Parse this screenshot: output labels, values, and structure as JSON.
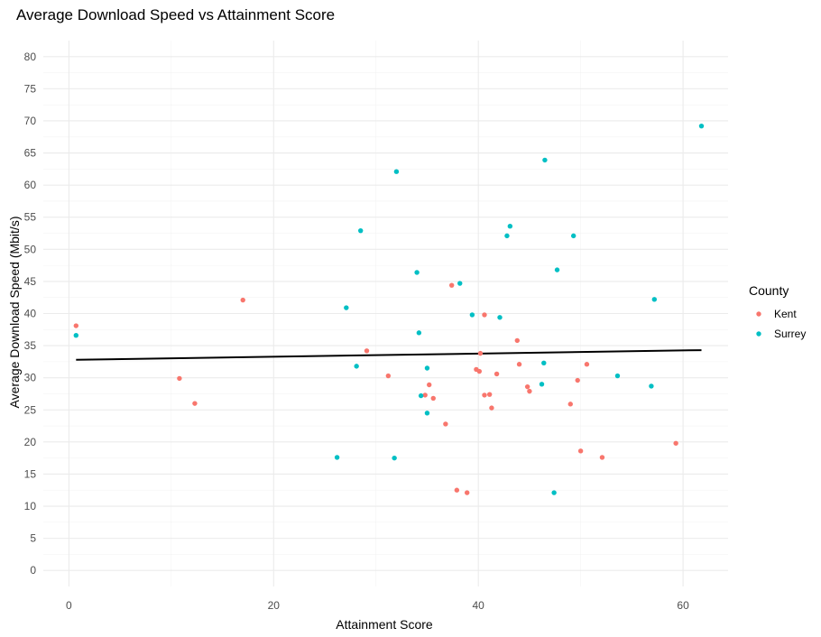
{
  "chart_data": {
    "type": "scatter",
    "title": "Average Download Speed vs Attainment Score",
    "xlabel": "Attainment Score",
    "ylabel": "Average Download Speed (Mbit/s)",
    "xlim": [
      -2.5,
      64.4
    ],
    "ylim": [
      -2.5,
      82.5
    ],
    "x_ticks": [
      0,
      20,
      40,
      60
    ],
    "y_ticks": [
      0,
      5,
      10,
      15,
      20,
      25,
      30,
      35,
      40,
      45,
      50,
      55,
      60,
      65,
      70,
      75,
      80
    ],
    "grid": true,
    "legend": {
      "title": "County",
      "position": "right"
    },
    "series": [
      {
        "name": "Kent",
        "color": "#F8766D",
        "points": [
          [
            0.7,
            38.1
          ],
          [
            10.8,
            29.9
          ],
          [
            12.3,
            26.0
          ],
          [
            17.0,
            42.1
          ],
          [
            29.1,
            34.2
          ],
          [
            31.2,
            30.3
          ],
          [
            34.8,
            27.3
          ],
          [
            35.2,
            28.9
          ],
          [
            35.6,
            26.8
          ],
          [
            36.8,
            22.8
          ],
          [
            37.4,
            44.4
          ],
          [
            37.9,
            12.5
          ],
          [
            38.9,
            12.1
          ],
          [
            39.8,
            31.3
          ],
          [
            40.1,
            31.0
          ],
          [
            40.2,
            33.8
          ],
          [
            40.6,
            39.8
          ],
          [
            40.6,
            27.3
          ],
          [
            41.1,
            27.4
          ],
          [
            41.3,
            25.3
          ],
          [
            41.8,
            30.6
          ],
          [
            43.8,
            35.8
          ],
          [
            44.0,
            32.1
          ],
          [
            44.8,
            28.6
          ],
          [
            45.0,
            27.9
          ],
          [
            49.0,
            25.9
          ],
          [
            49.7,
            29.6
          ],
          [
            50.0,
            18.6
          ],
          [
            50.6,
            32.1
          ],
          [
            52.1,
            17.6
          ],
          [
            59.3,
            19.8
          ]
        ]
      },
      {
        "name": "Surrey",
        "color": "#00BFC4",
        "points": [
          [
            0.7,
            36.6
          ],
          [
            26.2,
            17.6
          ],
          [
            27.1,
            40.9
          ],
          [
            28.1,
            31.8
          ],
          [
            28.5,
            52.9
          ],
          [
            31.8,
            17.5
          ],
          [
            32.0,
            62.1
          ],
          [
            34.0,
            46.4
          ],
          [
            34.2,
            37.0
          ],
          [
            34.4,
            27.2
          ],
          [
            35.0,
            31.5
          ],
          [
            35.0,
            24.5
          ],
          [
            38.2,
            44.7
          ],
          [
            39.4,
            39.8
          ],
          [
            42.1,
            39.4
          ],
          [
            42.8,
            52.1
          ],
          [
            43.1,
            53.6
          ],
          [
            46.2,
            29.0
          ],
          [
            46.4,
            32.3
          ],
          [
            46.5,
            63.9
          ],
          [
            47.4,
            12.1
          ],
          [
            47.7,
            46.8
          ],
          [
            49.3,
            52.1
          ],
          [
            53.6,
            30.3
          ],
          [
            56.9,
            28.7
          ],
          [
            57.2,
            42.2
          ],
          [
            61.8,
            69.2
          ]
        ]
      }
    ],
    "trend_line": {
      "color": "#000000",
      "x": [
        0.7,
        61.8
      ],
      "y": [
        32.8,
        34.3
      ]
    }
  }
}
